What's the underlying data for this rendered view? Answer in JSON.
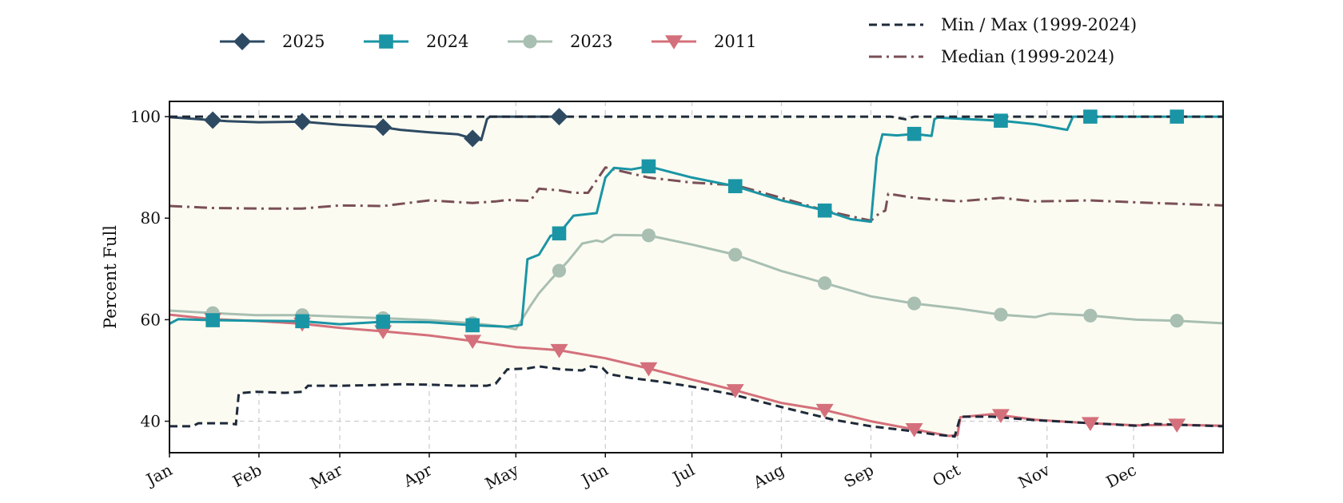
{
  "chart_data": {
    "type": "line",
    "ylabel": "Percent Full",
    "xlabel": "",
    "title": "",
    "ylim": [
      33.8,
      103
    ],
    "xlim": [
      0,
      365
    ],
    "x_unit": "day of year",
    "yticks": [
      40,
      60,
      80,
      100
    ],
    "month_ticks": [
      {
        "label": "Jan",
        "day": 0
      },
      {
        "label": "Feb",
        "day": 31
      },
      {
        "label": "Mar",
        "day": 59
      },
      {
        "label": "Apr",
        "day": 90
      },
      {
        "label": "May",
        "day": 120
      },
      {
        "label": "Jun",
        "day": 151
      },
      {
        "label": "Jul",
        "day": 181
      },
      {
        "label": "Aug",
        "day": 212
      },
      {
        "label": "Sep",
        "day": 243
      },
      {
        "label": "Oct",
        "day": 273
      },
      {
        "label": "Nov",
        "day": 304
      },
      {
        "label": "Dec",
        "day": 334
      }
    ],
    "grid": true,
    "legend_placement": "top, outside plot",
    "band": {
      "name": "Min / Max (1999-2024)",
      "color": "#1e2a3a",
      "fill": "#fbfbf1",
      "max": [
        [
          0,
          100
        ],
        [
          250,
          100
        ],
        [
          255,
          99.5
        ],
        [
          258,
          100
        ],
        [
          365,
          100
        ]
      ],
      "min": [
        [
          0,
          39
        ],
        [
          8,
          39
        ],
        [
          10,
          39.6
        ],
        [
          20,
          39.6
        ],
        [
          23,
          39.4
        ],
        [
          24,
          45.5
        ],
        [
          30,
          45.8
        ],
        [
          40,
          45.6
        ],
        [
          46,
          45.8
        ],
        [
          48,
          47
        ],
        [
          60,
          47
        ],
        [
          70,
          47.1
        ],
        [
          80,
          47.3
        ],
        [
          90,
          47.2
        ],
        [
          100,
          47
        ],
        [
          110,
          47
        ],
        [
          113,
          47.4
        ],
        [
          117,
          50.2
        ],
        [
          124,
          50.4
        ],
        [
          128,
          50.8
        ],
        [
          136,
          50.2
        ],
        [
          143,
          50
        ],
        [
          146,
          50.8
        ],
        [
          150,
          50.5
        ],
        [
          152,
          49.3
        ],
        [
          160,
          48.5
        ],
        [
          170,
          47.8
        ],
        [
          181,
          46.8
        ],
        [
          195,
          45.3
        ],
        [
          212,
          42.8
        ],
        [
          230,
          40.3
        ],
        [
          243,
          39
        ],
        [
          255,
          38.2
        ],
        [
          265,
          37.4
        ],
        [
          270,
          37.1
        ],
        [
          272,
          37
        ],
        [
          274,
          40.9
        ],
        [
          285,
          40.9
        ],
        [
          300,
          40.2
        ],
        [
          320,
          39.6
        ],
        [
          335,
          39.1
        ],
        [
          340,
          39.5
        ],
        [
          365,
          39
        ]
      ]
    },
    "series": [
      {
        "name": "2025",
        "color": "#2e4a63",
        "marker": "diamond",
        "marker_days": [
          15,
          46,
          74,
          105,
          135
        ],
        "points": [
          [
            0,
            99.9
          ],
          [
            10,
            99.5
          ],
          [
            20,
            99.1
          ],
          [
            31,
            98.9
          ],
          [
            46,
            99
          ],
          [
            59,
            98.4
          ],
          [
            74,
            97.9
          ],
          [
            80,
            97.4
          ],
          [
            90,
            96.9
          ],
          [
            100,
            96.5
          ],
          [
            103,
            96
          ],
          [
            105,
            95.7
          ],
          [
            108,
            95.4
          ],
          [
            110,
            99.5
          ],
          [
            111,
            100
          ],
          [
            135,
            100
          ]
        ]
      },
      {
        "name": "2024",
        "color": "#1a95a5",
        "marker": "square",
        "marker_days": [
          15,
          46,
          74,
          105,
          135,
          166,
          196,
          227,
          258,
          288,
          319,
          349
        ],
        "points": [
          [
            0,
            59.2
          ],
          [
            3,
            60.1
          ],
          [
            15,
            59.9
          ],
          [
            30,
            59.8
          ],
          [
            46,
            59.7
          ],
          [
            59,
            59.1
          ],
          [
            74,
            59.6
          ],
          [
            90,
            59.5
          ],
          [
            105,
            58.9
          ],
          [
            117,
            58.6
          ],
          [
            122,
            59
          ],
          [
            124,
            71.9
          ],
          [
            128,
            72.8
          ],
          [
            132,
            76.5
          ],
          [
            135,
            77
          ],
          [
            140,
            80.5
          ],
          [
            148,
            81
          ],
          [
            151,
            88
          ],
          [
            154,
            89.9
          ],
          [
            160,
            89.6
          ],
          [
            166,
            90.2
          ],
          [
            181,
            88
          ],
          [
            196,
            86.3
          ],
          [
            212,
            83.5
          ],
          [
            227,
            81.5
          ],
          [
            236,
            79.8
          ],
          [
            243,
            79.3
          ],
          [
            245,
            92
          ],
          [
            247,
            96.5
          ],
          [
            252,
            96.3
          ],
          [
            258,
            96.6
          ],
          [
            264,
            96.2
          ],
          [
            265,
            99.5
          ],
          [
            266,
            99.8
          ],
          [
            288,
            99.2
          ],
          [
            300,
            98.5
          ],
          [
            311,
            97.4
          ],
          [
            313,
            100
          ],
          [
            319,
            100
          ],
          [
            349,
            100
          ],
          [
            365,
            100
          ]
        ]
      },
      {
        "name": "2023",
        "color": "#a8bfb2",
        "marker": "circle",
        "marker_days": [
          15,
          46,
          74,
          105,
          135,
          166,
          196,
          227,
          258,
          288,
          319,
          349
        ],
        "points": [
          [
            0,
            61.8
          ],
          [
            15,
            61.3
          ],
          [
            30,
            60.9
          ],
          [
            46,
            60.9
          ],
          [
            59,
            60.6
          ],
          [
            74,
            60.3
          ],
          [
            90,
            59.9
          ],
          [
            105,
            59.3
          ],
          [
            115,
            58.7
          ],
          [
            120,
            58.1
          ],
          [
            125,
            62.7
          ],
          [
            128,
            65.2
          ],
          [
            132,
            67.8
          ],
          [
            138,
            71.5
          ],
          [
            143,
            75
          ],
          [
            148,
            75.6
          ],
          [
            150,
            75.3
          ],
          [
            154,
            76.7
          ],
          [
            166,
            76.6
          ],
          [
            181,
            74.8
          ],
          [
            196,
            72.8
          ],
          [
            212,
            69.6
          ],
          [
            227,
            67.2
          ],
          [
            243,
            64.6
          ],
          [
            258,
            63.2
          ],
          [
            273,
            62.2
          ],
          [
            288,
            61
          ],
          [
            300,
            60.5
          ],
          [
            305,
            61.2
          ],
          [
            319,
            60.8
          ],
          [
            335,
            60
          ],
          [
            349,
            59.8
          ],
          [
            365,
            59.3
          ]
        ]
      },
      {
        "name": "2011",
        "color": "#d4707b",
        "marker": "triangle-down",
        "marker_days": [
          15,
          46,
          74,
          105,
          135,
          166,
          196,
          227,
          258,
          288,
          319,
          349
        ],
        "points": [
          [
            0,
            61
          ],
          [
            15,
            60.1
          ],
          [
            31,
            59.7
          ],
          [
            46,
            59.2
          ],
          [
            59,
            58.4
          ],
          [
            74,
            57.7
          ],
          [
            90,
            56.9
          ],
          [
            105,
            55.8
          ],
          [
            120,
            54.6
          ],
          [
            135,
            54
          ],
          [
            151,
            52.4
          ],
          [
            166,
            50.4
          ],
          [
            181,
            48.2
          ],
          [
            196,
            46.1
          ],
          [
            212,
            43.6
          ],
          [
            227,
            42.2
          ],
          [
            243,
            40
          ],
          [
            258,
            38.4
          ],
          [
            270,
            37.1
          ],
          [
            273,
            37.3
          ],
          [
            274,
            40.8
          ],
          [
            285,
            41.4
          ],
          [
            300,
            40.3
          ],
          [
            319,
            39.6
          ],
          [
            335,
            39.2
          ],
          [
            349,
            39.3
          ],
          [
            365,
            39.1
          ]
        ]
      },
      {
        "name": "Median (1999-2024)",
        "color": "#7a4f57",
        "marker": "none",
        "marker_days": [],
        "points": [
          [
            0,
            82.4
          ],
          [
            15,
            82
          ],
          [
            31,
            81.9
          ],
          [
            46,
            81.9
          ],
          [
            59,
            82.5
          ],
          [
            74,
            82.4
          ],
          [
            90,
            83.5
          ],
          [
            105,
            83
          ],
          [
            113,
            83.3
          ],
          [
            117,
            83.6
          ],
          [
            125,
            83.4
          ],
          [
            128,
            85.8
          ],
          [
            135,
            85.5
          ],
          [
            140,
            85
          ],
          [
            145,
            85
          ],
          [
            151,
            90
          ],
          [
            166,
            88
          ],
          [
            181,
            87
          ],
          [
            196,
            86.5
          ],
          [
            212,
            84
          ],
          [
            227,
            81.5
          ],
          [
            243,
            79.5
          ],
          [
            246,
            81
          ],
          [
            248,
            81.5
          ],
          [
            249,
            84.8
          ],
          [
            258,
            84
          ],
          [
            273,
            83.3
          ],
          [
            288,
            84
          ],
          [
            300,
            83.3
          ],
          [
            319,
            83.5
          ],
          [
            335,
            83.1
          ],
          [
            365,
            82.5
          ]
        ]
      }
    ],
    "legend": {
      "left": [
        {
          "label": "2025",
          "series": 0
        },
        {
          "label": "2024",
          "series": 1
        },
        {
          "label": "2023",
          "series": 2
        },
        {
          "label": "2011",
          "series": 3
        }
      ],
      "right": [
        {
          "label": "Min / Max (1999-2024)",
          "style": "dashed",
          "color": "#1e2a3a"
        },
        {
          "label": "Median (1999-2024)",
          "style": "dashdot",
          "color": "#7a4f57"
        }
      ]
    }
  }
}
